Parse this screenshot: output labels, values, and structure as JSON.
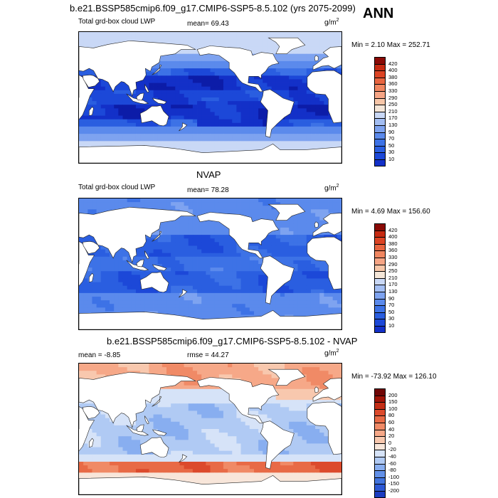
{
  "season": "ANN",
  "units": {
    "base": "g/m",
    "sup": "2"
  },
  "colors": {
    "land": "#ffffff",
    "coast": "#222222",
    "abs_scale": [
      "#08087a",
      "#0c1ca8",
      "#1330c8",
      "#1c48d8",
      "#2a5ee0",
      "#3d72e6",
      "#5b8aec",
      "#7ea3f0",
      "#a3bef3",
      "#c9d8f6",
      "#f4e6d8",
      "#f7c6a8",
      "#f6a585",
      "#f08660",
      "#e86540",
      "#dc4424",
      "#c62a12",
      "#8a0a06"
    ],
    "diff_scale": [
      "#08087a",
      "#12209a",
      "#1c3cc0",
      "#2c58d4",
      "#4274de",
      "#6290e8",
      "#88aef0",
      "#b0caf4",
      "#d6e3f8",
      "#f8e6da",
      "#f8c8ae",
      "#f6a888",
      "#f08a66",
      "#e86a46",
      "#dc4a2c",
      "#c42e16",
      "#a01408",
      "#700606"
    ]
  },
  "panels": [
    {
      "title": "b.e21.BSSP585cmip6.f09_g17.CMIP6-SSP5-8.5.102 (yrs 2075-2099)",
      "left_label": "Total grd-box cloud LWP",
      "mid_label": "mean=  69.43",
      "minmax": "Min =   2.10 Max = 252.71",
      "colorbar": [
        "420",
        "400",
        "380",
        "360",
        "330",
        "290",
        "250",
        "210",
        "170",
        "130",
        "90",
        "70",
        "50",
        "30",
        "10"
      ],
      "scale": "abs"
    },
    {
      "title": "NVAP",
      "left_label": "Total grd-box cloud LWP",
      "mid_label": "mean=  78.28",
      "minmax": "Min =   4.69 Max = 156.60",
      "colorbar": [
        "420",
        "400",
        "380",
        "360",
        "330",
        "290",
        "250",
        "210",
        "170",
        "130",
        "90",
        "70",
        "50",
        "30",
        "10"
      ],
      "scale": "abs"
    },
    {
      "title": "b.e21.BSSP585cmip6.f09_g17.CMIP6-SSP5-8.5.102 - NVAP",
      "left_label": "mean =  -8.85",
      "mid_label": "rmse =  44.27",
      "minmax": "Min = -73.92 Max = 126.10",
      "colorbar": [
        "200",
        "150",
        "100",
        "80",
        "60",
        "40",
        "20",
        "0",
        "-20",
        "-40",
        "-60",
        "-80",
        "-100",
        "-150",
        "-200"
      ],
      "scale": "diff"
    }
  ],
  "chart_data": [
    {
      "type": "heatmap",
      "title": "b.e21.BSSP585cmip6.f09_g17.CMIP6-SSP5-8.5.102 (yrs 2075-2099)",
      "variable": "Total grd-box cloud LWP",
      "units": "g/m2",
      "mean": 69.43,
      "min": 2.1,
      "max": 252.71,
      "colorbar_levels": [
        10,
        30,
        50,
        70,
        90,
        130,
        170,
        210,
        250,
        290,
        330,
        360,
        380,
        400,
        420
      ]
    },
    {
      "type": "heatmap",
      "title": "NVAP",
      "variable": "Total grd-box cloud LWP",
      "units": "g/m2",
      "mean": 78.28,
      "min": 4.69,
      "max": 156.6,
      "colorbar_levels": [
        10,
        30,
        50,
        70,
        90,
        130,
        170,
        210,
        250,
        290,
        330,
        360,
        380,
        400,
        420
      ]
    },
    {
      "type": "heatmap",
      "title": "b.e21.BSSP585cmip6.f09_g17.CMIP6-SSP5-8.5.102 - NVAP",
      "units": "g/m2",
      "mean": -8.85,
      "rmse": 44.27,
      "min": -73.92,
      "max": 126.1,
      "colorbar_levels": [
        -200,
        -150,
        -100,
        -80,
        -60,
        -40,
        -20,
        0,
        20,
        40,
        60,
        80,
        100,
        150,
        200
      ]
    }
  ]
}
